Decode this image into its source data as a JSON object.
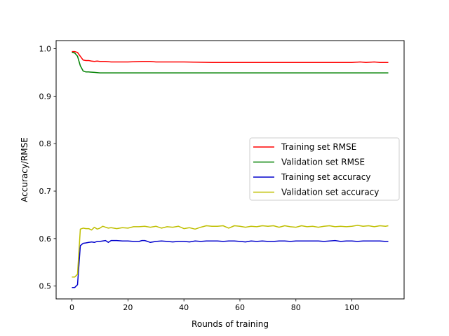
{
  "chart_data": {
    "type": "line",
    "title": "",
    "xlabel": "Rounds of training",
    "ylabel": "Accuracy/RMSE",
    "xlim": [
      -5.65,
      118.65
    ],
    "ylim": [
      0.473,
      1.017
    ],
    "xticks": [
      0,
      20,
      40,
      60,
      80,
      100
    ],
    "xtick_labels": [
      "0",
      "20",
      "40",
      "60",
      "80",
      "100"
    ],
    "yticks": [
      0.5,
      0.6,
      0.7,
      0.8,
      0.9,
      1.0
    ],
    "ytick_labels": [
      "0.5",
      "0.6",
      "0.7",
      "0.8",
      "0.9",
      "1.0"
    ],
    "grid": false,
    "legend_position": "center-right",
    "series": [
      {
        "name": "Training set RMSE",
        "color": "#ff0000",
        "points": [
          [
            0,
            0.994
          ],
          [
            1,
            0.994
          ],
          [
            2,
            0.992
          ],
          [
            3,
            0.984
          ],
          [
            4,
            0.976
          ],
          [
            5,
            0.975
          ],
          [
            6,
            0.975
          ],
          [
            7,
            0.974
          ],
          [
            8,
            0.973
          ],
          [
            9,
            0.974
          ],
          [
            10,
            0.973
          ],
          [
            12,
            0.973
          ],
          [
            14,
            0.972
          ],
          [
            20,
            0.972
          ],
          [
            25,
            0.973
          ],
          [
            27,
            0.973
          ],
          [
            28,
            0.973
          ],
          [
            30,
            0.972
          ],
          [
            35,
            0.972
          ],
          [
            40,
            0.972
          ],
          [
            50,
            0.971
          ],
          [
            60,
            0.971
          ],
          [
            70,
            0.971
          ],
          [
            80,
            0.971
          ],
          [
            90,
            0.971
          ],
          [
            100,
            0.971
          ],
          [
            103,
            0.972
          ],
          [
            105,
            0.971
          ],
          [
            108,
            0.972
          ],
          [
            110,
            0.971
          ],
          [
            113,
            0.971
          ]
        ]
      },
      {
        "name": "Validation set RMSE",
        "color": "#008000",
        "points": [
          [
            0,
            0.992
          ],
          [
            1,
            0.991
          ],
          [
            2,
            0.984
          ],
          [
            3,
            0.964
          ],
          [
            4,
            0.953
          ],
          [
            5,
            0.951
          ],
          [
            6,
            0.951
          ],
          [
            8,
            0.95
          ],
          [
            10,
            0.949
          ],
          [
            15,
            0.949
          ],
          [
            20,
            0.949
          ],
          [
            30,
            0.949
          ],
          [
            40,
            0.949
          ],
          [
            60,
            0.949
          ],
          [
            80,
            0.949
          ],
          [
            100,
            0.949
          ],
          [
            113,
            0.949
          ]
        ]
      },
      {
        "name": "Training set accuracy",
        "color": "#0000cc",
        "points": [
          [
            0,
            0.497
          ],
          [
            1,
            0.497
          ],
          [
            2,
            0.503
          ],
          [
            3,
            0.585
          ],
          [
            4,
            0.59
          ],
          [
            5,
            0.591
          ],
          [
            6,
            0.592
          ],
          [
            7,
            0.593
          ],
          [
            8,
            0.592
          ],
          [
            9,
            0.594
          ],
          [
            10,
            0.594
          ],
          [
            11,
            0.595
          ],
          [
            12,
            0.596
          ],
          [
            13,
            0.592
          ],
          [
            14,
            0.596
          ],
          [
            16,
            0.596
          ],
          [
            18,
            0.595
          ],
          [
            20,
            0.595
          ],
          [
            22,
            0.594
          ],
          [
            24,
            0.594
          ],
          [
            25,
            0.596
          ],
          [
            26,
            0.596
          ],
          [
            27,
            0.594
          ],
          [
            28,
            0.592
          ],
          [
            30,
            0.594
          ],
          [
            32,
            0.595
          ],
          [
            34,
            0.594
          ],
          [
            36,
            0.593
          ],
          [
            38,
            0.594
          ],
          [
            40,
            0.594
          ],
          [
            42,
            0.593
          ],
          [
            44,
            0.595
          ],
          [
            46,
            0.594
          ],
          [
            48,
            0.595
          ],
          [
            50,
            0.595
          ],
          [
            52,
            0.595
          ],
          [
            54,
            0.594
          ],
          [
            56,
            0.595
          ],
          [
            58,
            0.595
          ],
          [
            60,
            0.594
          ],
          [
            62,
            0.593
          ],
          [
            64,
            0.595
          ],
          [
            66,
            0.594
          ],
          [
            68,
            0.595
          ],
          [
            70,
            0.594
          ],
          [
            72,
            0.594
          ],
          [
            74,
            0.595
          ],
          [
            76,
            0.595
          ],
          [
            78,
            0.594
          ],
          [
            80,
            0.595
          ],
          [
            82,
            0.595
          ],
          [
            84,
            0.595
          ],
          [
            86,
            0.595
          ],
          [
            88,
            0.595
          ],
          [
            90,
            0.594
          ],
          [
            92,
            0.595
          ],
          [
            94,
            0.596
          ],
          [
            96,
            0.594
          ],
          [
            98,
            0.595
          ],
          [
            100,
            0.595
          ],
          [
            102,
            0.594
          ],
          [
            104,
            0.595
          ],
          [
            106,
            0.595
          ],
          [
            108,
            0.595
          ],
          [
            110,
            0.595
          ],
          [
            112,
            0.594
          ],
          [
            113,
            0.594
          ]
        ]
      },
      {
        "name": "Validation set accuracy",
        "color": "#bfbf00",
        "points": [
          [
            0,
            0.519
          ],
          [
            1,
            0.519
          ],
          [
            2,
            0.525
          ],
          [
            3,
            0.62
          ],
          [
            4,
            0.622
          ],
          [
            5,
            0.621
          ],
          [
            6,
            0.621
          ],
          [
            7,
            0.618
          ],
          [
            8,
            0.624
          ],
          [
            9,
            0.62
          ],
          [
            10,
            0.622
          ],
          [
            11,
            0.626
          ],
          [
            12,
            0.624
          ],
          [
            13,
            0.622
          ],
          [
            14,
            0.623
          ],
          [
            16,
            0.621
          ],
          [
            18,
            0.623
          ],
          [
            20,
            0.622
          ],
          [
            22,
            0.625
          ],
          [
            24,
            0.625
          ],
          [
            26,
            0.626
          ],
          [
            28,
            0.624
          ],
          [
            30,
            0.626
          ],
          [
            32,
            0.622
          ],
          [
            34,
            0.625
          ],
          [
            36,
            0.624
          ],
          [
            38,
            0.626
          ],
          [
            40,
            0.621
          ],
          [
            42,
            0.623
          ],
          [
            44,
            0.62
          ],
          [
            46,
            0.624
          ],
          [
            48,
            0.627
          ],
          [
            50,
            0.626
          ],
          [
            52,
            0.626
          ],
          [
            54,
            0.627
          ],
          [
            56,
            0.622
          ],
          [
            58,
            0.627
          ],
          [
            60,
            0.626
          ],
          [
            62,
            0.624
          ],
          [
            64,
            0.626
          ],
          [
            66,
            0.625
          ],
          [
            68,
            0.627
          ],
          [
            70,
            0.626
          ],
          [
            72,
            0.627
          ],
          [
            74,
            0.624
          ],
          [
            76,
            0.627
          ],
          [
            78,
            0.625
          ],
          [
            80,
            0.624
          ],
          [
            82,
            0.627
          ],
          [
            84,
            0.625
          ],
          [
            86,
            0.626
          ],
          [
            88,
            0.624
          ],
          [
            90,
            0.626
          ],
          [
            92,
            0.627
          ],
          [
            94,
            0.625
          ],
          [
            96,
            0.626
          ],
          [
            98,
            0.625
          ],
          [
            100,
            0.626
          ],
          [
            102,
            0.628
          ],
          [
            104,
            0.626
          ],
          [
            106,
            0.627
          ],
          [
            108,
            0.625
          ],
          [
            110,
            0.627
          ],
          [
            112,
            0.626
          ],
          [
            113,
            0.627
          ]
        ]
      }
    ]
  }
}
